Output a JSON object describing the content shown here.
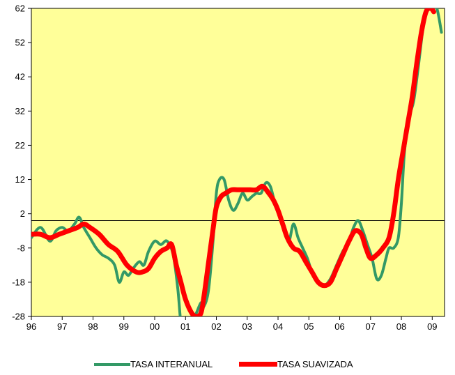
{
  "chart_data": {
    "type": "line",
    "title": "",
    "xlabel": "",
    "ylabel": "",
    "ylim": [
      -28,
      62
    ],
    "yticks": [
      62,
      52,
      42,
      32,
      22,
      12,
      2,
      -8,
      -18,
      -28
    ],
    "xticks": [
      "96",
      "97",
      "98",
      "99",
      "00",
      "01",
      "02",
      "03",
      "04",
      "05",
      "06",
      "07",
      "08",
      "09"
    ],
    "xlim": [
      96,
      109.4
    ],
    "reference_line": 0,
    "background": "#FFFF99",
    "grid": false,
    "legend_position": "bottom",
    "series": [
      {
        "name": "TASA INTERANUAL",
        "color": "#339966",
        "x": [
          96.0,
          96.3,
          96.6,
          96.8,
          97.0,
          97.2,
          97.4,
          97.55,
          97.7,
          97.9,
          98.1,
          98.3,
          98.5,
          98.7,
          98.85,
          99.0,
          99.15,
          99.3,
          99.5,
          99.65,
          99.8,
          100.0,
          100.2,
          100.4,
          100.6,
          100.75,
          100.85,
          100.95,
          101.1,
          101.3,
          101.5,
          101.6,
          101.75,
          101.9,
          102.0,
          102.1,
          102.25,
          102.4,
          102.55,
          102.7,
          102.85,
          103.0,
          103.15,
          103.3,
          103.45,
          103.6,
          103.75,
          103.9,
          104.05,
          104.2,
          104.35,
          104.5,
          104.65,
          104.8,
          104.95,
          105.1,
          105.3,
          105.5,
          105.7,
          105.9,
          106.1,
          106.3,
          106.45,
          106.6,
          106.75,
          106.9,
          107.05,
          107.2,
          107.35,
          107.5,
          107.6,
          107.75,
          107.9,
          108.0,
          108.1,
          108.25,
          108.4,
          108.55,
          108.7,
          108.85,
          109.0,
          109.15,
          109.3
        ],
        "values": [
          -5,
          -2,
          -6,
          -3,
          -2,
          -3,
          -1,
          1,
          -2,
          -5,
          -8,
          -10,
          -11,
          -13,
          -18,
          -15,
          -16,
          -14,
          -12,
          -13,
          -9,
          -6,
          -7,
          -6,
          -10,
          -20,
          -30,
          -32,
          -30,
          -28,
          -24,
          -25,
          -20,
          -5,
          8,
          12,
          12,
          6,
          3,
          5,
          8,
          6,
          7,
          8,
          8,
          11,
          10,
          5,
          1,
          -2,
          -6,
          -1,
          -5,
          -8,
          -11,
          -15,
          -18,
          -19,
          -17,
          -13,
          -9,
          -6,
          -2,
          0,
          -3,
          -7,
          -11,
          -17,
          -16,
          -11,
          -8,
          -8,
          -5,
          5,
          20,
          30,
          35,
          45,
          56,
          63,
          62,
          62,
          55
        ]
      },
      {
        "name": "TASA SUAVIZADA",
        "color": "#FF0000",
        "x": [
          96.0,
          96.3,
          96.6,
          96.9,
          97.2,
          97.5,
          97.7,
          97.9,
          98.2,
          98.5,
          98.8,
          99.1,
          99.4,
          99.6,
          99.8,
          100.0,
          100.2,
          100.4,
          100.55,
          100.7,
          100.85,
          101.0,
          101.2,
          101.35,
          101.5,
          101.6,
          101.75,
          101.9,
          102.0,
          102.15,
          102.3,
          102.5,
          102.7,
          102.9,
          103.1,
          103.3,
          103.5,
          103.7,
          103.85,
          104.0,
          104.15,
          104.3,
          104.5,
          104.7,
          104.9,
          105.1,
          105.3,
          105.5,
          105.7,
          105.9,
          106.1,
          106.3,
          106.5,
          106.7,
          106.85,
          107.0,
          107.2,
          107.4,
          107.6,
          107.75,
          107.9,
          108.05,
          108.2,
          108.35,
          108.5,
          108.65,
          108.8,
          108.95,
          109.05
        ],
        "values": [
          -4,
          -4,
          -5,
          -4,
          -3,
          -2,
          -1,
          -2,
          -4,
          -7,
          -9,
          -13,
          -15,
          -15,
          -14,
          -11,
          -9,
          -8,
          -7,
          -13,
          -18,
          -23,
          -27,
          -28,
          -27,
          -22,
          -12,
          -2,
          4,
          7,
          8,
          9,
          9,
          9,
          9,
          9,
          10,
          8,
          6,
          3,
          -1,
          -5,
          -8,
          -9,
          -12,
          -15,
          -18,
          -19,
          -18,
          -14,
          -10,
          -6,
          -3,
          -4,
          -8,
          -11,
          -10,
          -8,
          -5,
          2,
          12,
          20,
          28,
          36,
          46,
          55,
          61,
          62,
          61
        ]
      }
    ]
  },
  "legend": {
    "items": [
      {
        "label": "TASA INTERANUAL",
        "color": "#339966"
      },
      {
        "label": "TASA SUAVIZADA",
        "color": "#FF0000"
      }
    ]
  }
}
